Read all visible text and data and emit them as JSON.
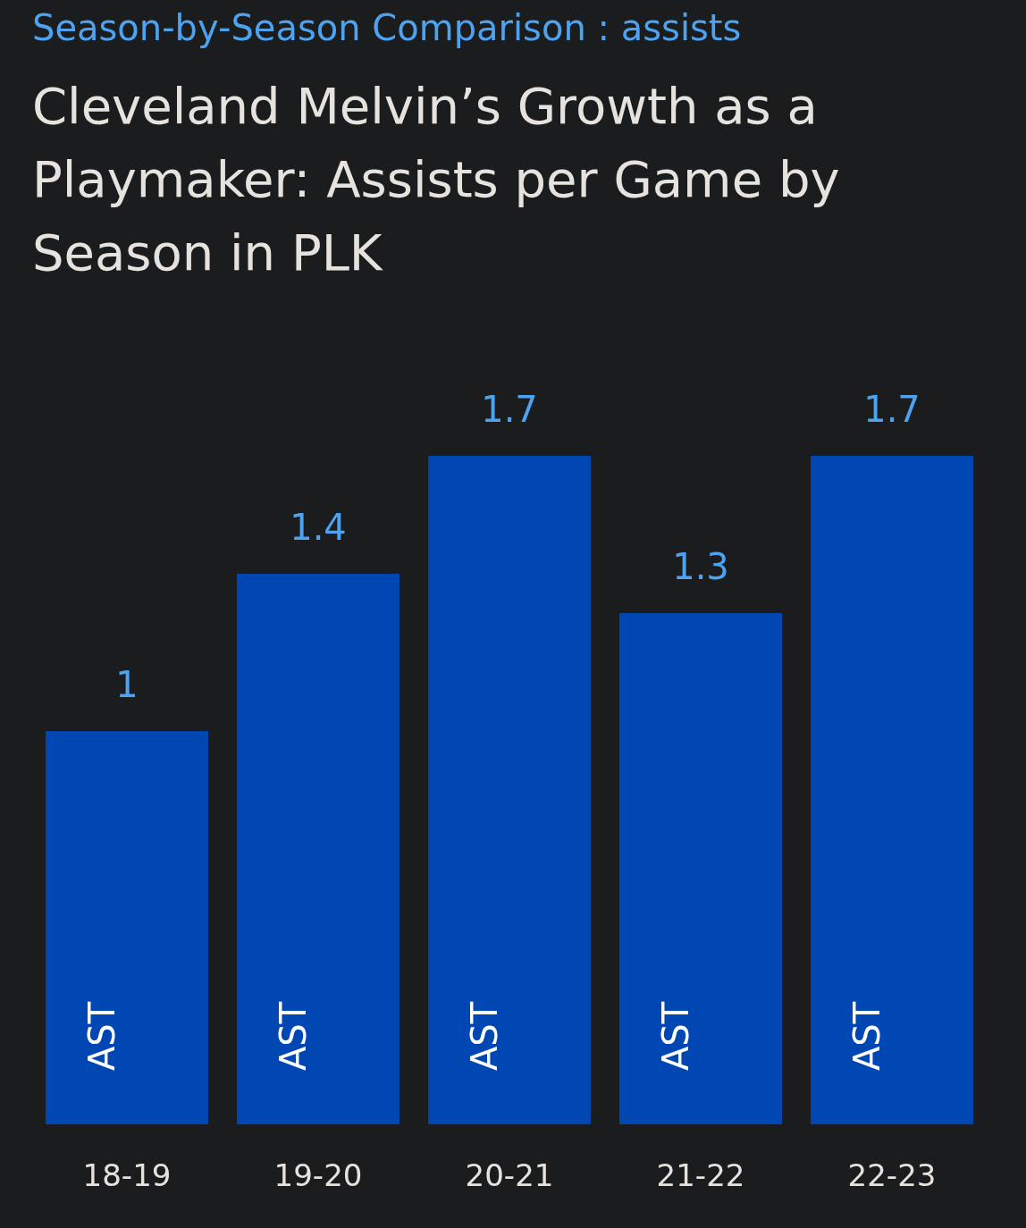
{
  "chart_data": {
    "type": "bar",
    "subtitle": "Season-by-Season Comparison : assists",
    "title": "Cleveland Melvin’s Growth as a Playmaker: Assists per Game by Season in PLK",
    "categories": [
      "18-19",
      "19-20",
      "20-21",
      "21-22",
      "22-23"
    ],
    "series": [
      {
        "name": "AST",
        "color": "#0047b3",
        "values": [
          1,
          1.4,
          1.7,
          1.3,
          1.7
        ]
      }
    ],
    "data_labels": true,
    "grid": false,
    "legend": false
  }
}
